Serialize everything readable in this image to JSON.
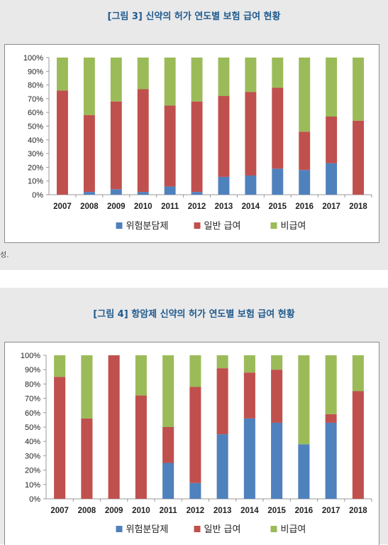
{
  "figures": [
    {
      "title": "[그림 3] 신약의 허가 연도별 보험 급여 현황",
      "note": "성."
    },
    {
      "title": "[그림 4] 항암제 신약의 허가 연도별 보험 급여 현황",
      "note": ""
    }
  ],
  "chart_data": [
    {
      "type": "bar",
      "stacked": true,
      "categories": [
        "2007",
        "2008",
        "2009",
        "2010",
        "2011",
        "2012",
        "2013",
        "2014",
        "2015",
        "2016",
        "2017",
        "2018"
      ],
      "ylim": [
        0,
        100
      ],
      "yticks": [
        "0%",
        "10%",
        "20%",
        "30%",
        "40%",
        "50%",
        "60%",
        "70%",
        "80%",
        "90%",
        "100%"
      ],
      "grid": false,
      "legend": "bottom",
      "series": [
        {
          "name": "위험분담제",
          "color": "#4f81bd",
          "values": [
            0,
            2,
            4,
            2,
            6,
            2,
            13,
            14,
            19,
            18,
            23,
            0
          ]
        },
        {
          "name": "일반 급여",
          "color": "#c0504d",
          "values": [
            76,
            56,
            64,
            75,
            59,
            66,
            59,
            61,
            59,
            28,
            34,
            54
          ]
        },
        {
          "name": "비급여",
          "color": "#9bbb59",
          "values": [
            24,
            42,
            32,
            23,
            35,
            32,
            28,
            25,
            22,
            54,
            43,
            46
          ]
        }
      ]
    },
    {
      "type": "bar",
      "stacked": true,
      "categories": [
        "2007",
        "2008",
        "2009",
        "2010",
        "2011",
        "2012",
        "2013",
        "2014",
        "2015",
        "2016",
        "2017",
        "2018"
      ],
      "ylim": [
        0,
        100
      ],
      "yticks": [
        "0%",
        "10%",
        "20%",
        "30%",
        "40%",
        "50%",
        "60%",
        "70%",
        "80%",
        "90%",
        "100%"
      ],
      "grid": false,
      "legend": "bottom",
      "series": [
        {
          "name": "위험분담제",
          "color": "#4f81bd",
          "values": [
            0,
            0,
            0,
            0,
            25,
            11,
            45,
            56,
            53,
            38,
            53,
            0
          ]
        },
        {
          "name": "일반 급여",
          "color": "#c0504d",
          "values": [
            85,
            56,
            100,
            72,
            25,
            67,
            46,
            32,
            37,
            0,
            6,
            75
          ]
        },
        {
          "name": "비급여",
          "color": "#9bbb59",
          "values": [
            15,
            44,
            0,
            28,
            50,
            22,
            9,
            12,
            10,
            62,
            41,
            25
          ]
        }
      ]
    }
  ]
}
